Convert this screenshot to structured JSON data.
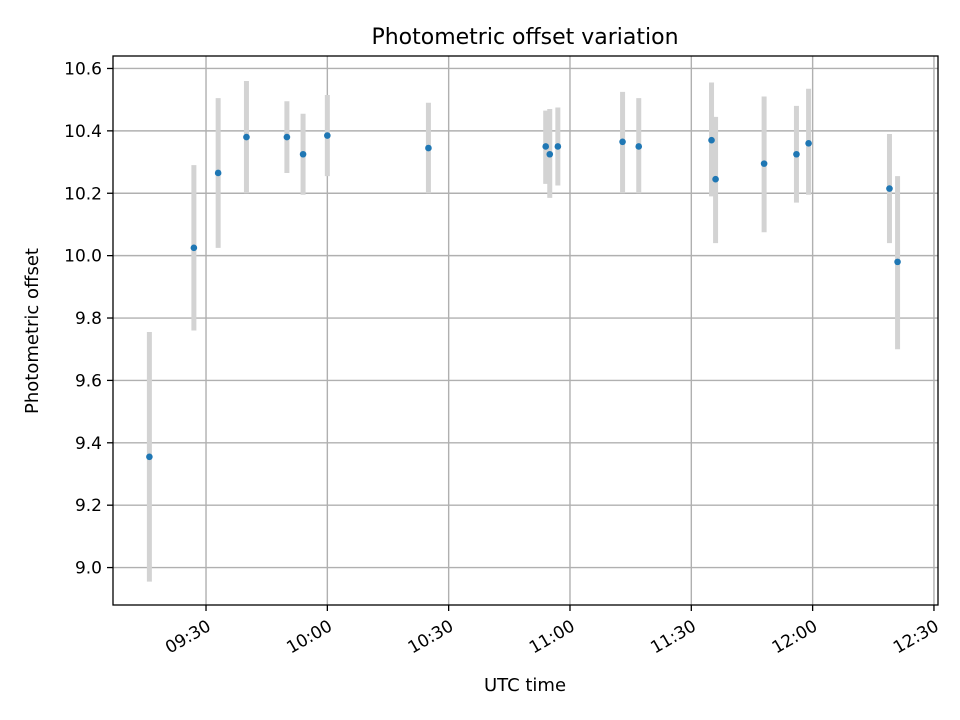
{
  "chart_data": {
    "type": "scatter",
    "title": "Photometric offset variation",
    "xlabel": "UTC time",
    "ylabel": "Photometric offset",
    "grid": true,
    "legend": "none",
    "xlim": [
      "09:07",
      "12:31"
    ],
    "ylim": [
      8.88,
      10.64
    ],
    "x_ticks": [
      "09:30",
      "10:00",
      "10:30",
      "11:00",
      "11:30",
      "12:00",
      "12:30"
    ],
    "y_ticks": [
      "9.0",
      "9.2",
      "9.4",
      "9.6",
      "9.8",
      "10.0",
      "10.2",
      "10.4",
      "10.6"
    ],
    "colors": {
      "point": "#1f77b4",
      "error_bar": "#d3d3d3",
      "grid": "#b0b0b0"
    },
    "series": [
      {
        "points": [
          {
            "x": "09:16",
            "y": 9.355,
            "lo": 8.955,
            "hi": 9.755
          },
          {
            "x": "09:27",
            "y": 10.025,
            "lo": 9.76,
            "hi": 10.29
          },
          {
            "x": "09:33",
            "y": 10.265,
            "lo": 10.025,
            "hi": 10.505
          },
          {
            "x": "09:40",
            "y": 10.38,
            "lo": 10.2,
            "hi": 10.56
          },
          {
            "x": "09:50",
            "y": 10.38,
            "lo": 10.265,
            "hi": 10.495
          },
          {
            "x": "09:54",
            "y": 10.325,
            "lo": 10.195,
            "hi": 10.455
          },
          {
            "x": "10:00",
            "y": 10.385,
            "lo": 10.255,
            "hi": 10.515
          },
          {
            "x": "10:25",
            "y": 10.345,
            "lo": 10.2,
            "hi": 10.49
          },
          {
            "x": "10:54",
            "y": 10.35,
            "lo": 10.23,
            "hi": 10.465
          },
          {
            "x": "10:55",
            "y": 10.325,
            "lo": 10.185,
            "hi": 10.47
          },
          {
            "x": "10:57",
            "y": 10.35,
            "lo": 10.225,
            "hi": 10.475
          },
          {
            "x": "11:13",
            "y": 10.365,
            "lo": 10.2,
            "hi": 10.525
          },
          {
            "x": "11:17",
            "y": 10.35,
            "lo": 10.2,
            "hi": 10.505
          },
          {
            "x": "11:35",
            "y": 10.37,
            "lo": 10.19,
            "hi": 10.555
          },
          {
            "x": "11:36",
            "y": 10.245,
            "lo": 10.04,
            "hi": 10.445
          },
          {
            "x": "11:48",
            "y": 10.295,
            "lo": 10.075,
            "hi": 10.51
          },
          {
            "x": "11:56",
            "y": 10.325,
            "lo": 10.17,
            "hi": 10.48
          },
          {
            "x": "11:59",
            "y": 10.36,
            "lo": 10.195,
            "hi": 10.535
          },
          {
            "x": "12:19",
            "y": 10.215,
            "lo": 10.04,
            "hi": 10.39
          },
          {
            "x": "12:21",
            "y": 9.98,
            "lo": 9.7,
            "hi": 10.255
          }
        ]
      }
    ]
  }
}
